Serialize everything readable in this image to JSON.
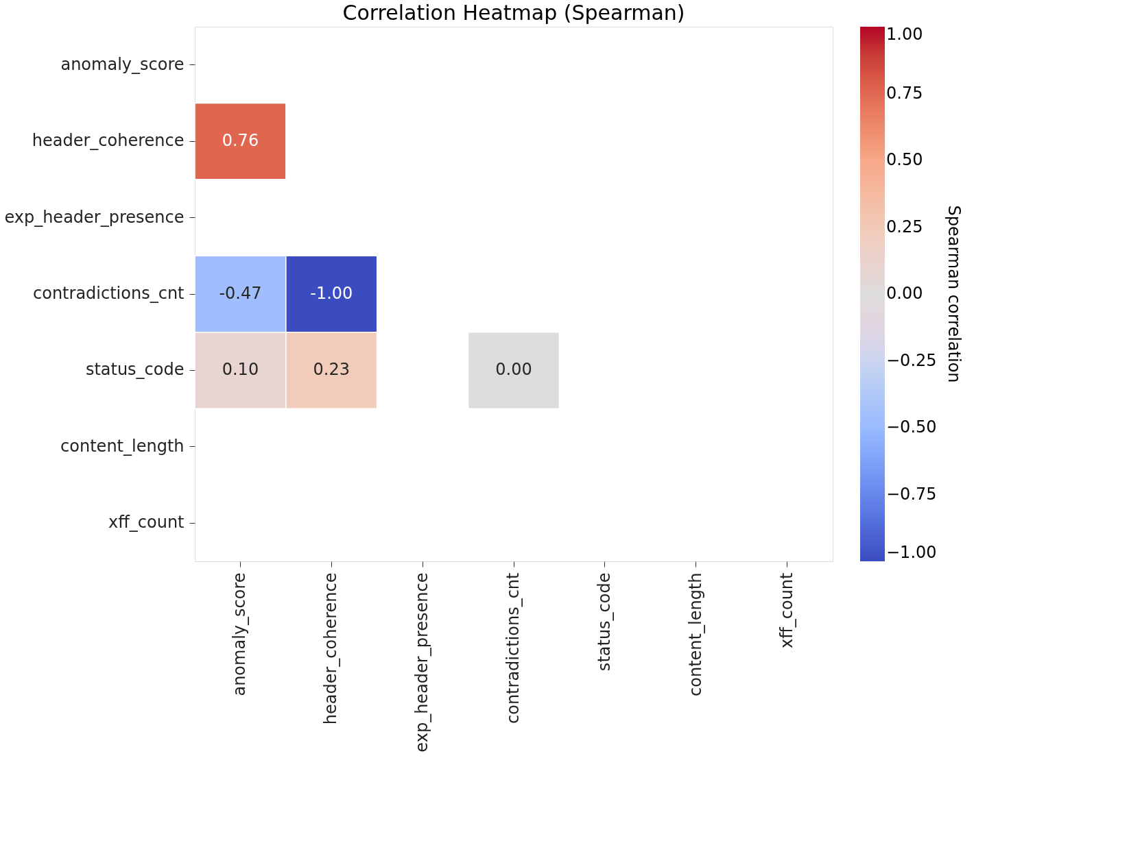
{
  "chart_data": {
    "type": "heatmap",
    "title": "Correlation Heatmap (Spearman)",
    "clabel": "Spearman correlation",
    "categories": [
      "anomaly_score",
      "header_coherence",
      "exp_header_presence",
      "contradictions_cnt",
      "status_code",
      "content_length",
      "xff_count"
    ],
    "y_categories": [
      "anomaly_score",
      "header_coherence",
      "exp_header_presence",
      "contradictions_cnt",
      "status_code",
      "content_length",
      "xff_count"
    ],
    "cells": [
      [
        null,
        null,
        null,
        null,
        null,
        null,
        null
      ],
      [
        0.76,
        null,
        null,
        null,
        null,
        null,
        null
      ],
      [
        null,
        null,
        null,
        null,
        null,
        null,
        null
      ],
      [
        -0.47,
        -1.0,
        null,
        null,
        null,
        null,
        null
      ],
      [
        0.1,
        0.23,
        null,
        0.0,
        null,
        null,
        null
      ],
      [
        null,
        null,
        null,
        null,
        null,
        null,
        null
      ],
      [
        null,
        null,
        null,
        null,
        null,
        null,
        null
      ]
    ],
    "cell_labels": [
      [
        null,
        null,
        null,
        null,
        null,
        null,
        null
      ],
      [
        "0.76",
        null,
        null,
        null,
        null,
        null,
        null
      ],
      [
        null,
        null,
        null,
        null,
        null,
        null,
        null
      ],
      [
        "-0.47",
        "-1.00",
        null,
        null,
        null,
        null,
        null
      ],
      [
        "0.10",
        "0.23",
        null,
        "0.00",
        null,
        null,
        null
      ],
      [
        null,
        null,
        null,
        null,
        null,
        null,
        null
      ],
      [
        null,
        null,
        null,
        null,
        null,
        null,
        null
      ]
    ],
    "clim": [
      -1,
      1
    ],
    "cticks": [
      {
        "value": -1,
        "label": "−1.00"
      },
      {
        "value": -0.75,
        "label": "−0.75"
      },
      {
        "value": -0.5,
        "label": "−0.50"
      },
      {
        "value": -0.25,
        "label": "−0.25"
      },
      {
        "value": 0,
        "label": "0.00"
      },
      {
        "value": 0.25,
        "label": "0.25"
      },
      {
        "value": 0.5,
        "label": "0.50"
      },
      {
        "value": 0.75,
        "label": "0.75"
      },
      {
        "value": 1,
        "label": "1.00"
      }
    ]
  }
}
